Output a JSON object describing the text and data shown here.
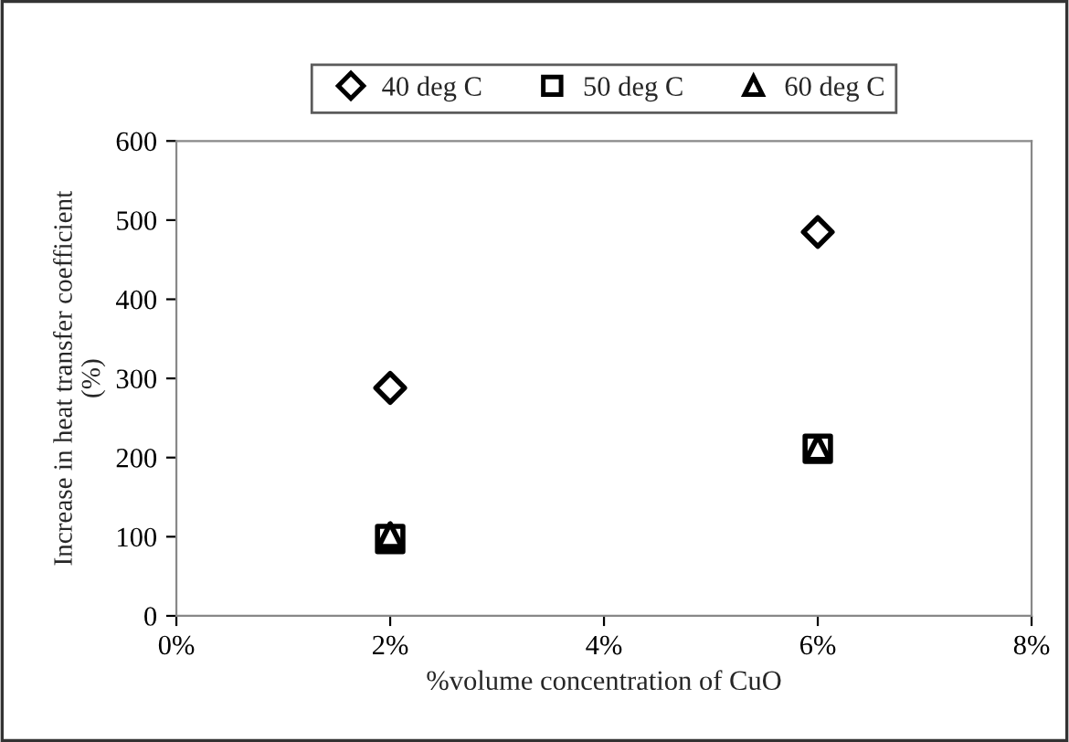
{
  "chart_data": {
    "type": "scatter",
    "xlabel": "%volume concentration of CuO",
    "ylabel": "Increase in heat transfer coefficient\n(%)",
    "x": [
      2,
      6
    ],
    "series": [
      {
        "name": "40 deg C",
        "color": "#000000",
        "values": [
          288,
          485
        ],
        "marker": "diamond"
      },
      {
        "name": "50 deg C",
        "color": "#000000",
        "values": [
          97,
          211
        ],
        "marker": "square"
      },
      {
        "name": "60 deg C",
        "color": "#000000",
        "values": [
          102,
          212
        ],
        "marker": "triangle"
      }
    ],
    "xlim": [
      0,
      8
    ],
    "xticks": [
      {
        "value": 0,
        "label": "0%"
      },
      {
        "value": 2,
        "label": "2%"
      },
      {
        "value": 4,
        "label": "4%"
      },
      {
        "value": 6,
        "label": "6%"
      },
      {
        "value": 8,
        "label": "8%"
      }
    ],
    "ylim": [
      0,
      600
    ],
    "yticks": [
      0,
      100,
      200,
      300,
      400,
      500,
      600
    ],
    "grid": false,
    "legend": "top"
  }
}
